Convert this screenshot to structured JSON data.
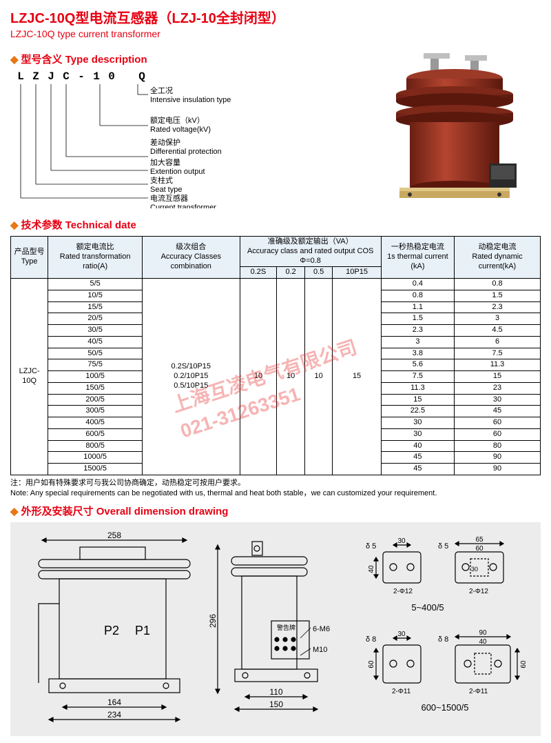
{
  "titles": {
    "main": "LZJC-10Q型电流互感器（LZJ-10全封闭型）",
    "sub": "LZJC-10Q type current transformer",
    "type_desc": "型号含义 Type description",
    "tech": "技术参数 Technical date",
    "dim": "外形及安装尺寸 Overall dimension drawing"
  },
  "code": {
    "letters": [
      "L",
      "Z",
      "J",
      "C",
      "-",
      "1",
      "0",
      "",
      "Q"
    ],
    "lines": [
      {
        "cn": "全工况",
        "en": "Intensive insulation type"
      },
      {
        "cn": "额定电压（kV）",
        "en": "Rated voltage(kV)"
      },
      {
        "cn": "差动保护",
        "en": "Differential protection"
      },
      {
        "cn": "加大容量",
        "en": "Extention output"
      },
      {
        "cn": "支柱式",
        "en": "Seat type"
      },
      {
        "cn": "电流互感器",
        "en": "Current transformer"
      }
    ]
  },
  "table": {
    "headers": {
      "type": {
        "cn": "产品型号",
        "en": "Type"
      },
      "ratio": {
        "cn": "额定电流比",
        "en": "Rated transformation ratio(A)"
      },
      "classes": {
        "cn": "级次组合",
        "en": "Accuracy Classes combination"
      },
      "accuracy": {
        "cn": "准确级及额定输出（VA）",
        "en": "Accuracy class and rated output COS Φ=0.8"
      },
      "thermal": {
        "cn": "一秒热稳定电流",
        "en": "1s thermal current (kA)"
      },
      "dynamic": {
        "cn": "动稳定电流",
        "en": "Rated dynamic current(kA)"
      },
      "sub": [
        "0.2S",
        "0.2",
        "0.5",
        "10P15"
      ]
    },
    "type_val": "LZJC-10Q",
    "classes_val": [
      "0.2S/10P15",
      "0.2/10P15",
      "0.5/10P15"
    ],
    "acc_vals": {
      "s02s": "10",
      "s02": "10",
      "s05": "10",
      "s10p": "15"
    },
    "rows": [
      {
        "ratio": "5/5",
        "th": "0.4",
        "dy": "0.8"
      },
      {
        "ratio": "10/5",
        "th": "0.8",
        "dy": "1.5"
      },
      {
        "ratio": "15/5",
        "th": "1.1",
        "dy": "2.3"
      },
      {
        "ratio": "20/5",
        "th": "1.5",
        "dy": "3"
      },
      {
        "ratio": "30/5",
        "th": "2.3",
        "dy": "4.5"
      },
      {
        "ratio": "40/5",
        "th": "3",
        "dy": "6"
      },
      {
        "ratio": "50/5",
        "th": "3.8",
        "dy": "7.5"
      },
      {
        "ratio": "75/5",
        "th": "5.6",
        "dy": "11.3"
      },
      {
        "ratio": "100/5",
        "th": "7.5",
        "dy": "15"
      },
      {
        "ratio": "150/5",
        "th": "11.3",
        "dy": "23"
      },
      {
        "ratio": "200/5",
        "th": "15",
        "dy": "30"
      },
      {
        "ratio": "300/5",
        "th": "22.5",
        "dy": "45"
      },
      {
        "ratio": "400/5",
        "th": "30",
        "dy": "60"
      },
      {
        "ratio": "600/5",
        "th": "30",
        "dy": "60"
      },
      {
        "ratio": "800/5",
        "th": "40",
        "dy": "80"
      },
      {
        "ratio": "1000/5",
        "th": "45",
        "dy": "90"
      },
      {
        "ratio": "1500/5",
        "th": "45",
        "dy": "90"
      }
    ]
  },
  "note": {
    "cn": "注：用户如有特殊要求可与我公司协商确定，动热稳定可按用户要求。",
    "en": "Note: Any special requirements can be negotiated with us, thermal and heat both stable，we can customized your requirement."
  },
  "watermark": {
    "line1": "上海互凌电气有限公司",
    "line2": "021-31263351"
  },
  "dims": {
    "a": "258",
    "b": "296",
    "c": "164",
    "d": "234",
    "e": "110",
    "f": "150",
    "g": "6-M6",
    "h": "M10",
    "p1": "P1",
    "p2": "P2",
    "warn": "警告牌",
    "r1": "5~400/5",
    "r2": "600~1500/5",
    "t1": "65",
    "t2": "60",
    "t3": "30",
    "t4": "40",
    "t5": "2-Φ12",
    "t6": "δ 5",
    "t7": "90",
    "t8": "40",
    "t9": "60",
    "t10": "2-Φ11",
    "t11": "δ 8",
    "t12": "30"
  },
  "colors": {
    "accent": "#e60012",
    "diamond": "#e67817",
    "table_header_bg": "#e8f0f8",
    "drawing_bg": "#ececec",
    "transformer_body": "#8b2a1a",
    "transformer_light": "#b54530"
  }
}
